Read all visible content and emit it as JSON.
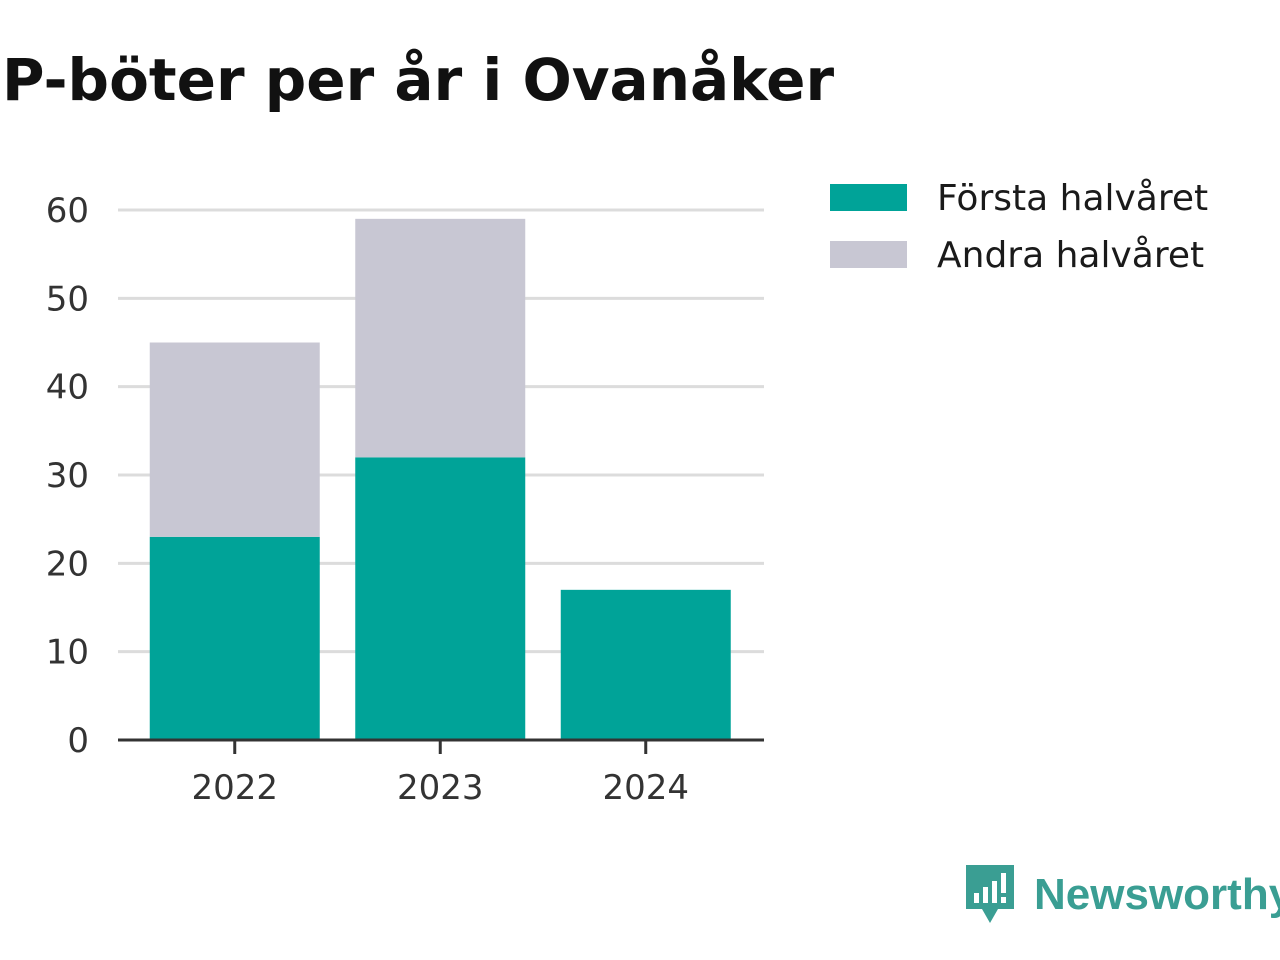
{
  "title": "P-böter per år i Ovanåker",
  "brand": {
    "name": "Newsworthy",
    "icon": "newsworthy-logo-icon",
    "color": "#3a9e93"
  },
  "colors": {
    "first_half": "#00a398",
    "second_half": "#c8c7d3",
    "grid": "#dcdcdc",
    "axis": "#333333"
  },
  "chart_data": {
    "type": "bar",
    "stacked": true,
    "categories": [
      "2022",
      "2023",
      "2024"
    ],
    "series": [
      {
        "name": "Första halvåret",
        "values": [
          23,
          32,
          17
        ],
        "color": "#00a398"
      },
      {
        "name": "Andra halvåret",
        "values": [
          22,
          27,
          0
        ],
        "color": "#c8c7d3"
      }
    ],
    "title": "P-böter per år i Ovanåker",
    "xlabel": "",
    "ylabel": "",
    "ylim": [
      0,
      60
    ],
    "yticks": [
      0,
      10,
      20,
      30,
      40,
      50,
      60
    ],
    "grid": true,
    "legend": "top-right"
  }
}
